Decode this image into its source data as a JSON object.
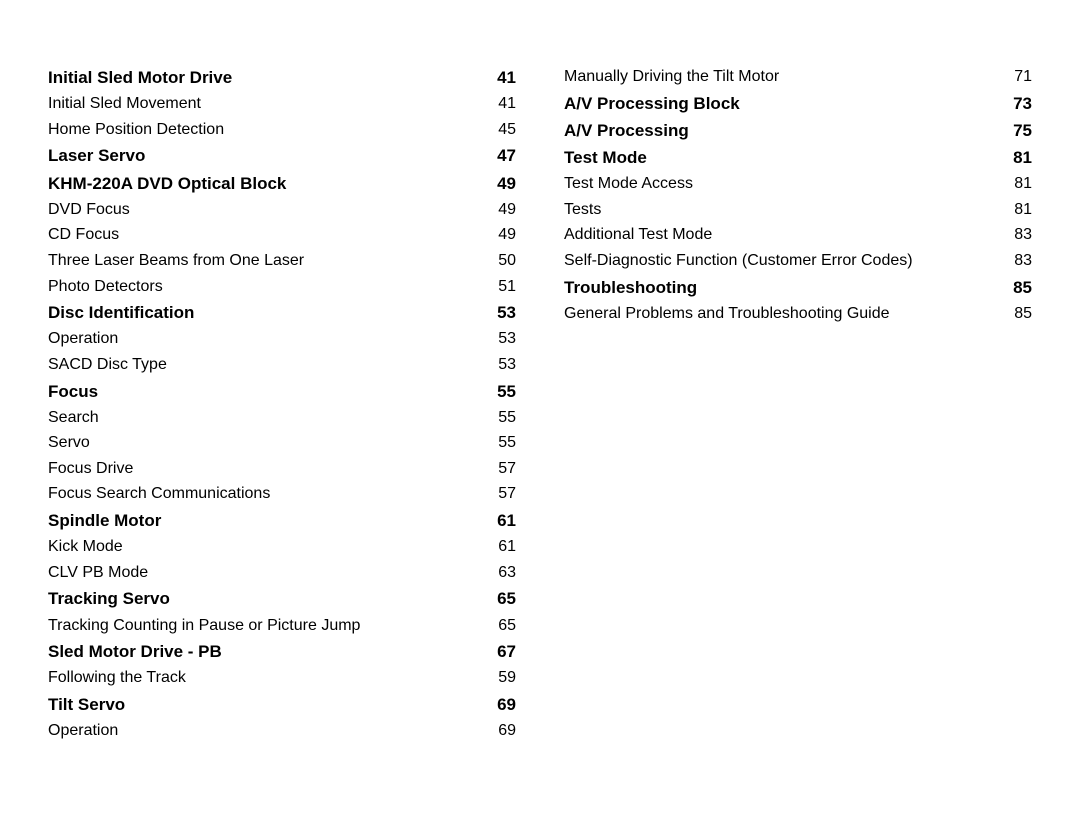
{
  "columns": [
    [
      {
        "type": "heading",
        "title": "Initial Sled Motor Drive",
        "page": "41"
      },
      {
        "type": "sub",
        "title": "Initial Sled Movement",
        "page": "41"
      },
      {
        "type": "sub",
        "title": "Home Position Detection",
        "page": "45"
      },
      {
        "type": "heading",
        "title": "Laser Servo",
        "page": "47"
      },
      {
        "type": "heading",
        "title": "KHM-220A DVD Optical Block",
        "page": "49"
      },
      {
        "type": "sub",
        "title": "DVD Focus",
        "page": "49"
      },
      {
        "type": "sub",
        "title": "CD Focus",
        "page": "49"
      },
      {
        "type": "sub",
        "title": "Three Laser Beams from One Laser",
        "page": "50"
      },
      {
        "type": "sub",
        "title": "Photo Detectors",
        "page": "51"
      },
      {
        "type": "heading",
        "title": "Disc Identification",
        "page": "53"
      },
      {
        "type": "sub",
        "title": "Operation",
        "page": "53"
      },
      {
        "type": "sub",
        "title": "SACD Disc Type",
        "page": "53"
      },
      {
        "type": "heading",
        "title": "Focus",
        "page": "55"
      },
      {
        "type": "sub",
        "title": "Search",
        "page": "55"
      },
      {
        "type": "sub",
        "title": "Servo",
        "page": "55"
      },
      {
        "type": "sub",
        "title": "Focus Drive",
        "page": "57"
      },
      {
        "type": "sub",
        "title": "Focus Search Communications",
        "page": "57"
      },
      {
        "type": "heading",
        "title": "Spindle Motor",
        "page": "61"
      },
      {
        "type": "sub",
        "title": "Kick Mode",
        "page": "61"
      },
      {
        "type": "sub",
        "title": "CLV PB Mode",
        "page": "63"
      },
      {
        "type": "heading",
        "title": "Tracking Servo",
        "page": "65"
      },
      {
        "type": "sub",
        "title": "Tracking Counting in Pause or Picture Jump",
        "page": "65"
      },
      {
        "type": "heading",
        "title": "Sled Motor Drive - PB",
        "page": "67"
      },
      {
        "type": "sub",
        "title": "Following the Track",
        "page": "59"
      },
      {
        "type": "heading",
        "title": "Tilt Servo",
        "page": "69"
      },
      {
        "type": "sub",
        "title": "Operation",
        "page": "69"
      }
    ],
    [
      {
        "type": "sub",
        "title": "Manually Driving the Tilt Motor",
        "page": "71"
      },
      {
        "type": "heading",
        "title": "A/V Processing Block",
        "page": "73"
      },
      {
        "type": "heading",
        "title": "A/V Processing",
        "page": "75"
      },
      {
        "type": "heading",
        "title": "Test Mode",
        "page": "81"
      },
      {
        "type": "sub",
        "title": "Test Mode Access",
        "page": "81"
      },
      {
        "type": "sub",
        "title": "Tests",
        "page": "81"
      },
      {
        "type": "sub",
        "title": "Additional Test Mode",
        "page": "83"
      },
      {
        "type": "sub",
        "title": "Self-Diagnostic Function (Customer Error Codes)",
        "page": "83"
      },
      {
        "type": "heading",
        "title": "Troubleshooting",
        "page": "85"
      },
      {
        "type": "sub",
        "title": "General Problems and Troubleshooting Guide",
        "page": "85"
      }
    ]
  ]
}
